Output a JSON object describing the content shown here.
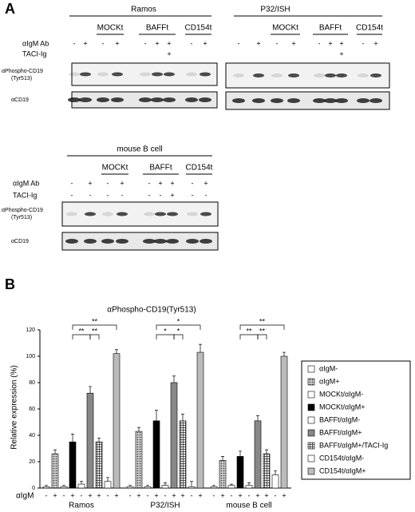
{
  "panel_a": {
    "label": "A",
    "row_labels": {
      "aigm": "αIgM Ab",
      "taci": "TACI-Ig",
      "phospho": "αPhospho-CD19",
      "phospho_site": "(Tyr513)",
      "cd19": "αCD19"
    },
    "blots": [
      {
        "cell": "Ramos",
        "groups": [
          "MOCKt",
          "BAFFt",
          "CD154t"
        ],
        "show_labels": true,
        "aigm": [
          "-",
          "+",
          "-",
          "+",
          "-",
          "+",
          "+",
          "-",
          "+"
        ],
        "taci": [
          null,
          null,
          null,
          null,
          null,
          null,
          "+",
          null,
          null
        ]
      },
      {
        "cell": "P32/ISH",
        "groups": [
          "MOCKt",
          "BAFFt",
          "CD154t"
        ],
        "show_labels": false,
        "aigm": [
          "-",
          "+",
          "-",
          "+",
          "-",
          "+",
          "+",
          "-",
          "+"
        ],
        "taci": [
          null,
          null,
          null,
          null,
          null,
          null,
          "+",
          null,
          null
        ]
      },
      {
        "cell": "mouse  B cell",
        "groups": [
          "MOCKt",
          "BAFFt",
          "CD154t"
        ],
        "show_labels": true,
        "aigm": [
          "-",
          "+",
          "-",
          "+",
          "-",
          "+",
          "+",
          "-",
          "+"
        ],
        "taci": [
          "-",
          "-",
          "-",
          "-",
          "-",
          "-",
          "+",
          "-",
          "-"
        ]
      }
    ]
  },
  "chart_data": {
    "type": "bar",
    "panel_label": "B",
    "title": "αPhospho-CD19(Tyr513)",
    "y_label": "Relative expression (%)",
    "categories": [
      "Ramos",
      "P32/ISH",
      "mouse B cell"
    ],
    "x_sign_label": "αIgM",
    "x_signs": [
      "-",
      "+",
      "-",
      "+",
      "-",
      "+",
      "+",
      "-",
      "+"
    ],
    "ylim": [
      0,
      120
    ],
    "yticks": [
      0,
      20,
      40,
      60,
      80,
      100,
      120
    ],
    "legend": "right",
    "series": [
      {
        "name": "αIgM-",
        "color": "#ffffff",
        "values": [
          1,
          1,
          1
        ],
        "errors": [
          1,
          1,
          1
        ]
      },
      {
        "name": "αIgM+",
        "color": "#aaaaaa",
        "pattern": "dots",
        "values": [
          26,
          43,
          21
        ],
        "errors": [
          3,
          3,
          3
        ]
      },
      {
        "name": "MOCKt/αIgM-",
        "color": "#ffffff",
        "values": [
          1,
          1,
          2
        ],
        "errors": [
          1,
          1,
          1
        ]
      },
      {
        "name": "MOCKt/αIgM+",
        "color": "#000000",
        "values": [
          35,
          51,
          24
        ],
        "errors": [
          6,
          8,
          4
        ]
      },
      {
        "name": "BAFFt/αIgM-",
        "color": "#ffffff",
        "values": [
          3,
          2,
          2
        ],
        "errors": [
          2,
          2,
          2
        ]
      },
      {
        "name": "BAFFt/αIgM+",
        "color": "#888888",
        "values": [
          72,
          80,
          51
        ],
        "errors": [
          5,
          5,
          4
        ]
      },
      {
        "name": "BAFFt/αIgM+/TACI-Ig",
        "color": "#666666",
        "pattern": "checks",
        "values": [
          35,
          51,
          26
        ],
        "errors": [
          3,
          5,
          3
        ]
      },
      {
        "name": "CD154t/αIgM-",
        "color": "#ffffff",
        "values": [
          5,
          1,
          10
        ],
        "errors": [
          3,
          4,
          3
        ]
      },
      {
        "name": "CD154t/αIgM+",
        "color": "#bbbbbb",
        "values": [
          102,
          103,
          100
        ],
        "errors": [
          3,
          6,
          3
        ]
      }
    ],
    "significance": [
      [
        "**",
        "**",
        "**"
      ],
      [
        "*",
        "*",
        "*"
      ],
      [
        "**",
        "**",
        "**"
      ]
    ]
  }
}
